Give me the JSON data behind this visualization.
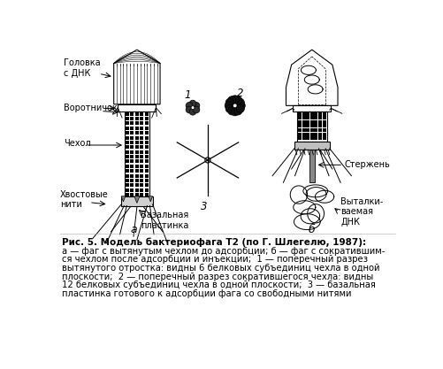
{
  "background_color": "#ffffff",
  "title_bold": "Рис. 5. Модель бактериофага Т2 (по Г. Шлегелю, 1987):",
  "caption_lines": [
    "а — фаг с вытянутым чехлом до адсорбции; б — фаг с сократившим-",
    "ся чехлом после адсорбции и инъекции;  1 — поперечный разрез",
    "вытянутого отростка: видны 6 белковых субъединиц чехла в одной",
    "плоскости;  2 — поперечный разрез сократившегося чехла: видны",
    "12 белковых субъединиц чехла в одной плоскости;  3 — базальная",
    "пластинка готового к адсорбции фага со свободными нитями"
  ],
  "fig_width": 5.02,
  "fig_height": 4.17,
  "dpi": 100
}
